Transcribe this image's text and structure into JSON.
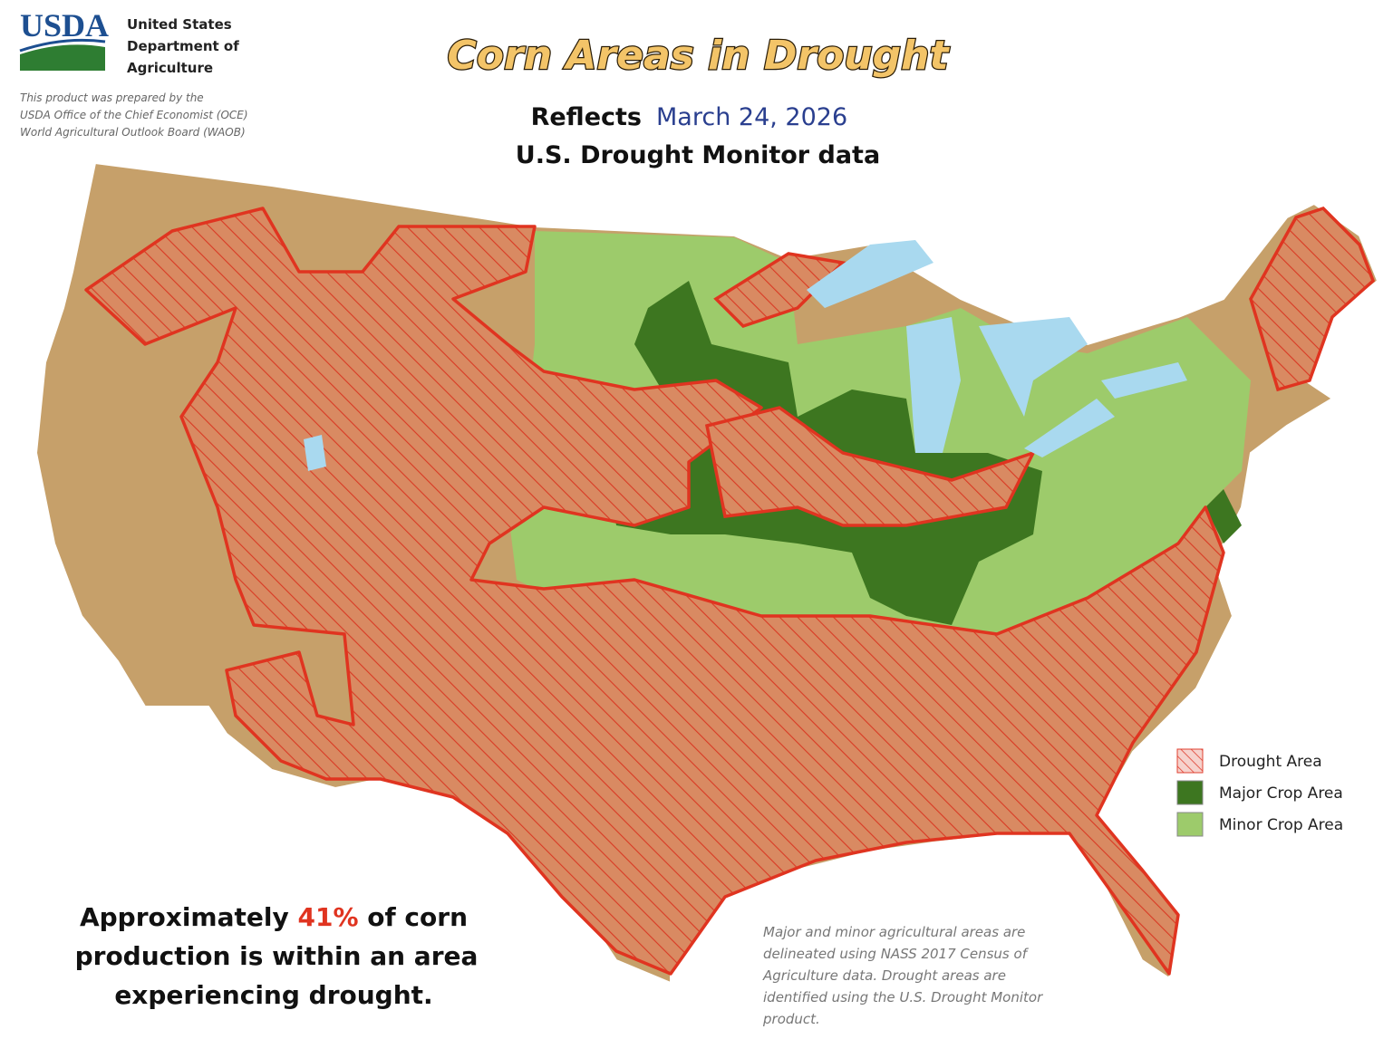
{
  "logo": {
    "mark": "USDA",
    "lines": [
      "United States",
      "Department of",
      "Agriculture"
    ]
  },
  "credit": [
    "This product was prepared by the",
    "USDA Office of the Chief Economist (OCE)",
    "World Agricultural Outlook Board (WAOB)"
  ],
  "header": {
    "title": "Corn Areas in Drought",
    "reflects": "Reflects",
    "date": "March 24, 2026",
    "source": "U.S. Drought Monitor data"
  },
  "legend": [
    "Drought Area",
    "Major Crop Area",
    "Minor Crop Area"
  ],
  "summary": {
    "before": "Approximately",
    "share": "41%",
    "after": "of corn",
    "line2": "production is within an area",
    "line3": "experiencing drought."
  },
  "footnote": [
    "Major and minor agricultural areas are",
    "delineated using NASS 2017 Census of",
    "Agriculture data.  Drought areas are",
    "identified using the U.S. Drought Monitor",
    "product."
  ]
}
